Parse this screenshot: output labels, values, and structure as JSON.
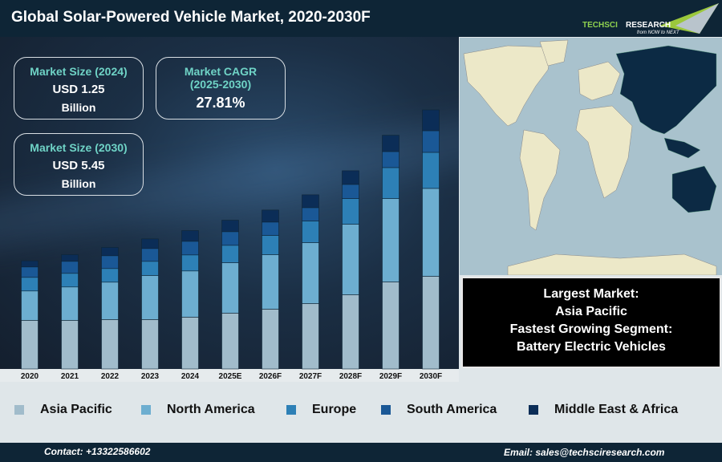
{
  "header": {
    "title": "Global Solar-Powered Vehicle Market, 2020-2030F",
    "logo_text": "TECHSCI RESEARCH",
    "logo_tagline": "from NOW to NEXT"
  },
  "kpis": {
    "size2024": {
      "label": "Market Size (2024)",
      "value": "USD 1.25",
      "unit": "Billion"
    },
    "cagr": {
      "label": "Market CAGR",
      "label2": "(2025-2030)",
      "value": "27.81%"
    },
    "size2030": {
      "label": "Market Size (2030)",
      "value": "USD 5.45",
      "unit": "Billion"
    }
  },
  "info": {
    "line1": "Largest Market:",
    "line2": "Asia Pacific",
    "line3": "Fastest Growing Segment:",
    "line4": "Battery Electric Vehicles"
  },
  "footer": {
    "contact": "Contact: +13322586602",
    "email": "Email: sales@techsciresearch.com"
  },
  "map": {
    "highlight_region": "Asia Pacific",
    "highlight_color": "#0c2a44",
    "land_color": "#ece8c8",
    "water_color": "#a9c2cd"
  },
  "chart_data": {
    "type": "bar",
    "stacked": true,
    "title": "",
    "xlabel": "",
    "ylabel": "",
    "grid": false,
    "legend_placement": "bottom",
    "categories": [
      "2020",
      "2021",
      "2022",
      "2023",
      "2024",
      "2025E",
      "2026F",
      "2027F",
      "2028F",
      "2029F",
      "2030F"
    ],
    "series": [
      {
        "name": "Asia Pacific",
        "color": "#a1bccb",
        "values": [
          18.2,
          18.2,
          18.5,
          18.5,
          19.4,
          20.9,
          22.4,
          24.5,
          27.8,
          32.6,
          34.7
        ]
      },
      {
        "name": "North America",
        "color": "#6daed0",
        "values": [
          11.0,
          12.5,
          14.0,
          16.5,
          17.3,
          18.9,
          20.4,
          22.8,
          26.4,
          31.2,
          32.9
        ]
      },
      {
        "name": "Europe",
        "color": "#2d80b6",
        "values": [
          5.1,
          5.1,
          5.1,
          5.3,
          6.0,
          6.5,
          7.2,
          8.1,
          9.6,
          11.6,
          13.5
        ]
      },
      {
        "name": "South America",
        "color": "#1a5896",
        "values": [
          3.9,
          4.5,
          4.8,
          4.8,
          5.1,
          5.1,
          5.0,
          5.0,
          5.3,
          6.0,
          8.1
        ]
      },
      {
        "name": "Middle East & Africa",
        "color": "#0b2d57",
        "values": [
          2.3,
          2.5,
          3.1,
          3.6,
          4.0,
          4.3,
          4.5,
          4.8,
          5.1,
          6.1,
          7.8
        ]
      }
    ]
  }
}
